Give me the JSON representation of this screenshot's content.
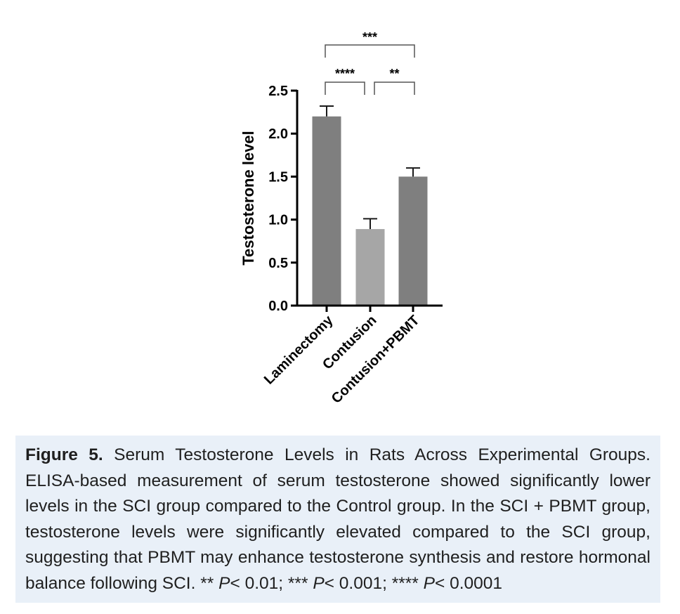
{
  "chart_data": {
    "type": "bar",
    "categories": [
      "Laminectomy",
      "Contusion",
      "Contusion+PBMT"
    ],
    "values": [
      2.2,
      0.89,
      1.5
    ],
    "errors": [
      0.12,
      0.12,
      0.1
    ],
    "bar_colors": [
      "#7f7f7f",
      "#a6a6a6",
      "#7f7f7f"
    ],
    "ylabel": "Testosterone level",
    "ylim": [
      0,
      2.5
    ],
    "yticks": [
      0.0,
      0.5,
      1.0,
      1.5,
      2.0,
      2.5
    ],
    "ytick_labels": [
      "0.0",
      "0.5",
      "1.0",
      "1.5",
      "2.0",
      "2.5"
    ],
    "grid": false,
    "significance": [
      {
        "from": "Laminectomy",
        "to": "Contusion+PBMT",
        "label": "***"
      },
      {
        "from": "Laminectomy",
        "to": "Contusion",
        "label": "****"
      },
      {
        "from": "Contusion",
        "to": "Contusion+PBMT",
        "label": "**"
      }
    ]
  },
  "caption": {
    "label": "Figure 5.",
    "text": "Serum Testosterone Levels in Rats Across Experimental Groups. ELISA-based measurement of serum testosterone showed significantly lower levels in the SCI group compared to the Control group. In the SCI + PBMT group, testosterone levels were significantly elevated compared to the SCI group, suggesting that PBMT may enhance testosterone synthesis and restore hormonal balance following SCI.",
    "sig_1_stars": "**",
    "sig_1_thresh": "< 0.01;",
    "sig_2_stars": "***",
    "sig_2_thresh": "< 0.001;",
    "sig_3_stars": "****",
    "sig_3_thresh": "< 0.0001",
    "p_symbol": "P"
  }
}
